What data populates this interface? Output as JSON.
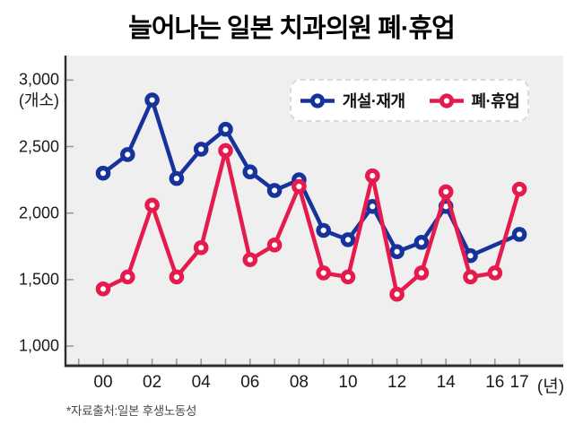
{
  "title": "늘어나는 일본 치과의원 폐·휴업",
  "source_note": "*자료출처:일본 후생노동성",
  "y_axis": {
    "unit_label": "(개소)",
    "tick_labels": [
      "3,000",
      "2,500",
      "2,000",
      "1,500",
      "1,000"
    ],
    "tick_values": [
      3000,
      2500,
      2000,
      1500,
      1000
    ]
  },
  "x_axis": {
    "unit_label": "(년)",
    "labeled_years": [
      "00",
      "02",
      "04",
      "06",
      "08",
      "10",
      "12",
      "14",
      "16",
      "17"
    ]
  },
  "legend": [
    {
      "label": "개설·재개",
      "color": "#16339c"
    },
    {
      "label": "폐·휴업",
      "color": "#e51a4d"
    }
  ],
  "colors": {
    "plot_bg": "#efefef",
    "axis": "#2e2e2e",
    "tick": "#9a9a9a",
    "blue": "#16339c",
    "red": "#e51a4d"
  },
  "chart_data": {
    "type": "line",
    "title": "늘어나는 일본 치과의원 폐·휴업",
    "xlabel": "(년)",
    "ylabel": "(개소)",
    "ylim": [
      1000,
      3000
    ],
    "ytick_step": 500,
    "grid": false,
    "legend_position": "top-right",
    "categories": [
      "00",
      "01",
      "02",
      "03",
      "04",
      "05",
      "06",
      "07",
      "08",
      "09",
      "10",
      "11",
      "12",
      "13",
      "14",
      "15",
      "16",
      "17"
    ],
    "series": [
      {
        "name": "개설·재개",
        "color": "#16339c",
        "values": [
          2300,
          2440,
          2850,
          2260,
          2480,
          2630,
          2310,
          2170,
          2250,
          1870,
          1800,
          2050,
          1710,
          1780,
          2050,
          1680,
          null,
          1840
        ]
      },
      {
        "name": "폐·휴업",
        "color": "#e51a4d",
        "values": [
          1430,
          1520,
          2060,
          1520,
          1740,
          2470,
          1650,
          1760,
          2200,
          1550,
          1520,
          2280,
          1390,
          1550,
          2160,
          1520,
          1550,
          2180
        ]
      }
    ]
  }
}
